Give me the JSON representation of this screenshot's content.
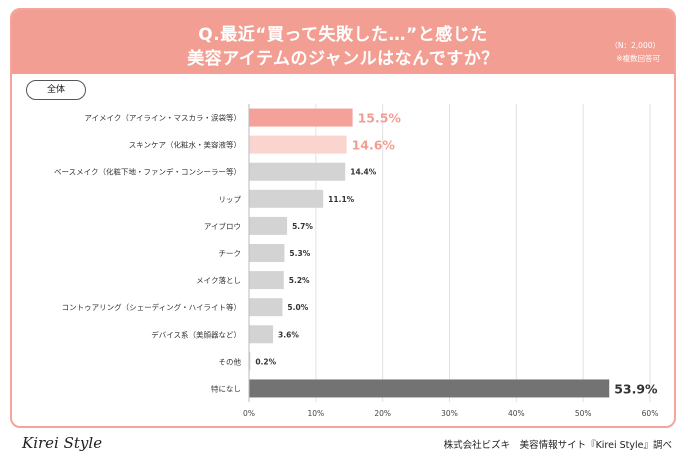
{
  "header": {
    "title_line1": "Q.最近“買って失敗した…”と感じた",
    "title_line2": "美容アイテムのジャンルはなんですか？",
    "sample_size": "（N：2,000）",
    "note": "※複数回答可",
    "bg_color": "#f39e93"
  },
  "badge": {
    "label": "全体"
  },
  "chart_data": {
    "type": "bar",
    "orientation": "horizontal",
    "categories": [
      "アイメイク（アイライン・マスカラ・涙袋等）",
      "スキンケア（化粧水・美容液等）",
      "ベースメイク（化粧下地・ファンデ・コンシーラー等）",
      "リップ",
      "アイブロウ",
      "チーク",
      "メイク落とし",
      "コントゥアリング（シェーディング・ハイライト等）",
      "デバイス系（美顔器など）",
      "その他",
      "特になし"
    ],
    "values": [
      15.5,
      14.6,
      14.4,
      11.1,
      5.7,
      5.3,
      5.2,
      5.0,
      3.6,
      0.2,
      53.9
    ],
    "value_labels": [
      "15.5%",
      "14.6%",
      "14.4%",
      "11.1%",
      "5.7%",
      "5.3%",
      "5.2%",
      "5.0%",
      "3.6%",
      "0.2%",
      "53.9%"
    ],
    "bar_colors": [
      "#f4a199",
      "#fad4cf",
      "#d3d3d3",
      "#d3d3d3",
      "#d3d3d3",
      "#d3d3d3",
      "#d3d3d3",
      "#d3d3d3",
      "#d3d3d3",
      "#d3d3d3",
      "#737373"
    ],
    "label_colors": [
      "#f39e93",
      "#f39e93",
      "#333333",
      "#333333",
      "#333333",
      "#333333",
      "#333333",
      "#333333",
      "#333333",
      "#333333",
      "#333333"
    ],
    "highlight": [
      true,
      true,
      false,
      false,
      false,
      false,
      false,
      false,
      false,
      false,
      true
    ],
    "xlim": [
      0,
      60
    ],
    "xticks": [
      0,
      10,
      20,
      30,
      40,
      50,
      60
    ],
    "xtick_labels": [
      "0%",
      "10%",
      "20%",
      "30%",
      "40%",
      "50%",
      "60%"
    ],
    "grid": true
  },
  "footer": {
    "logo": "Kirei Style",
    "credit": "株式会社ビズキ　美容情報サイト『Kirei Style』調べ"
  }
}
